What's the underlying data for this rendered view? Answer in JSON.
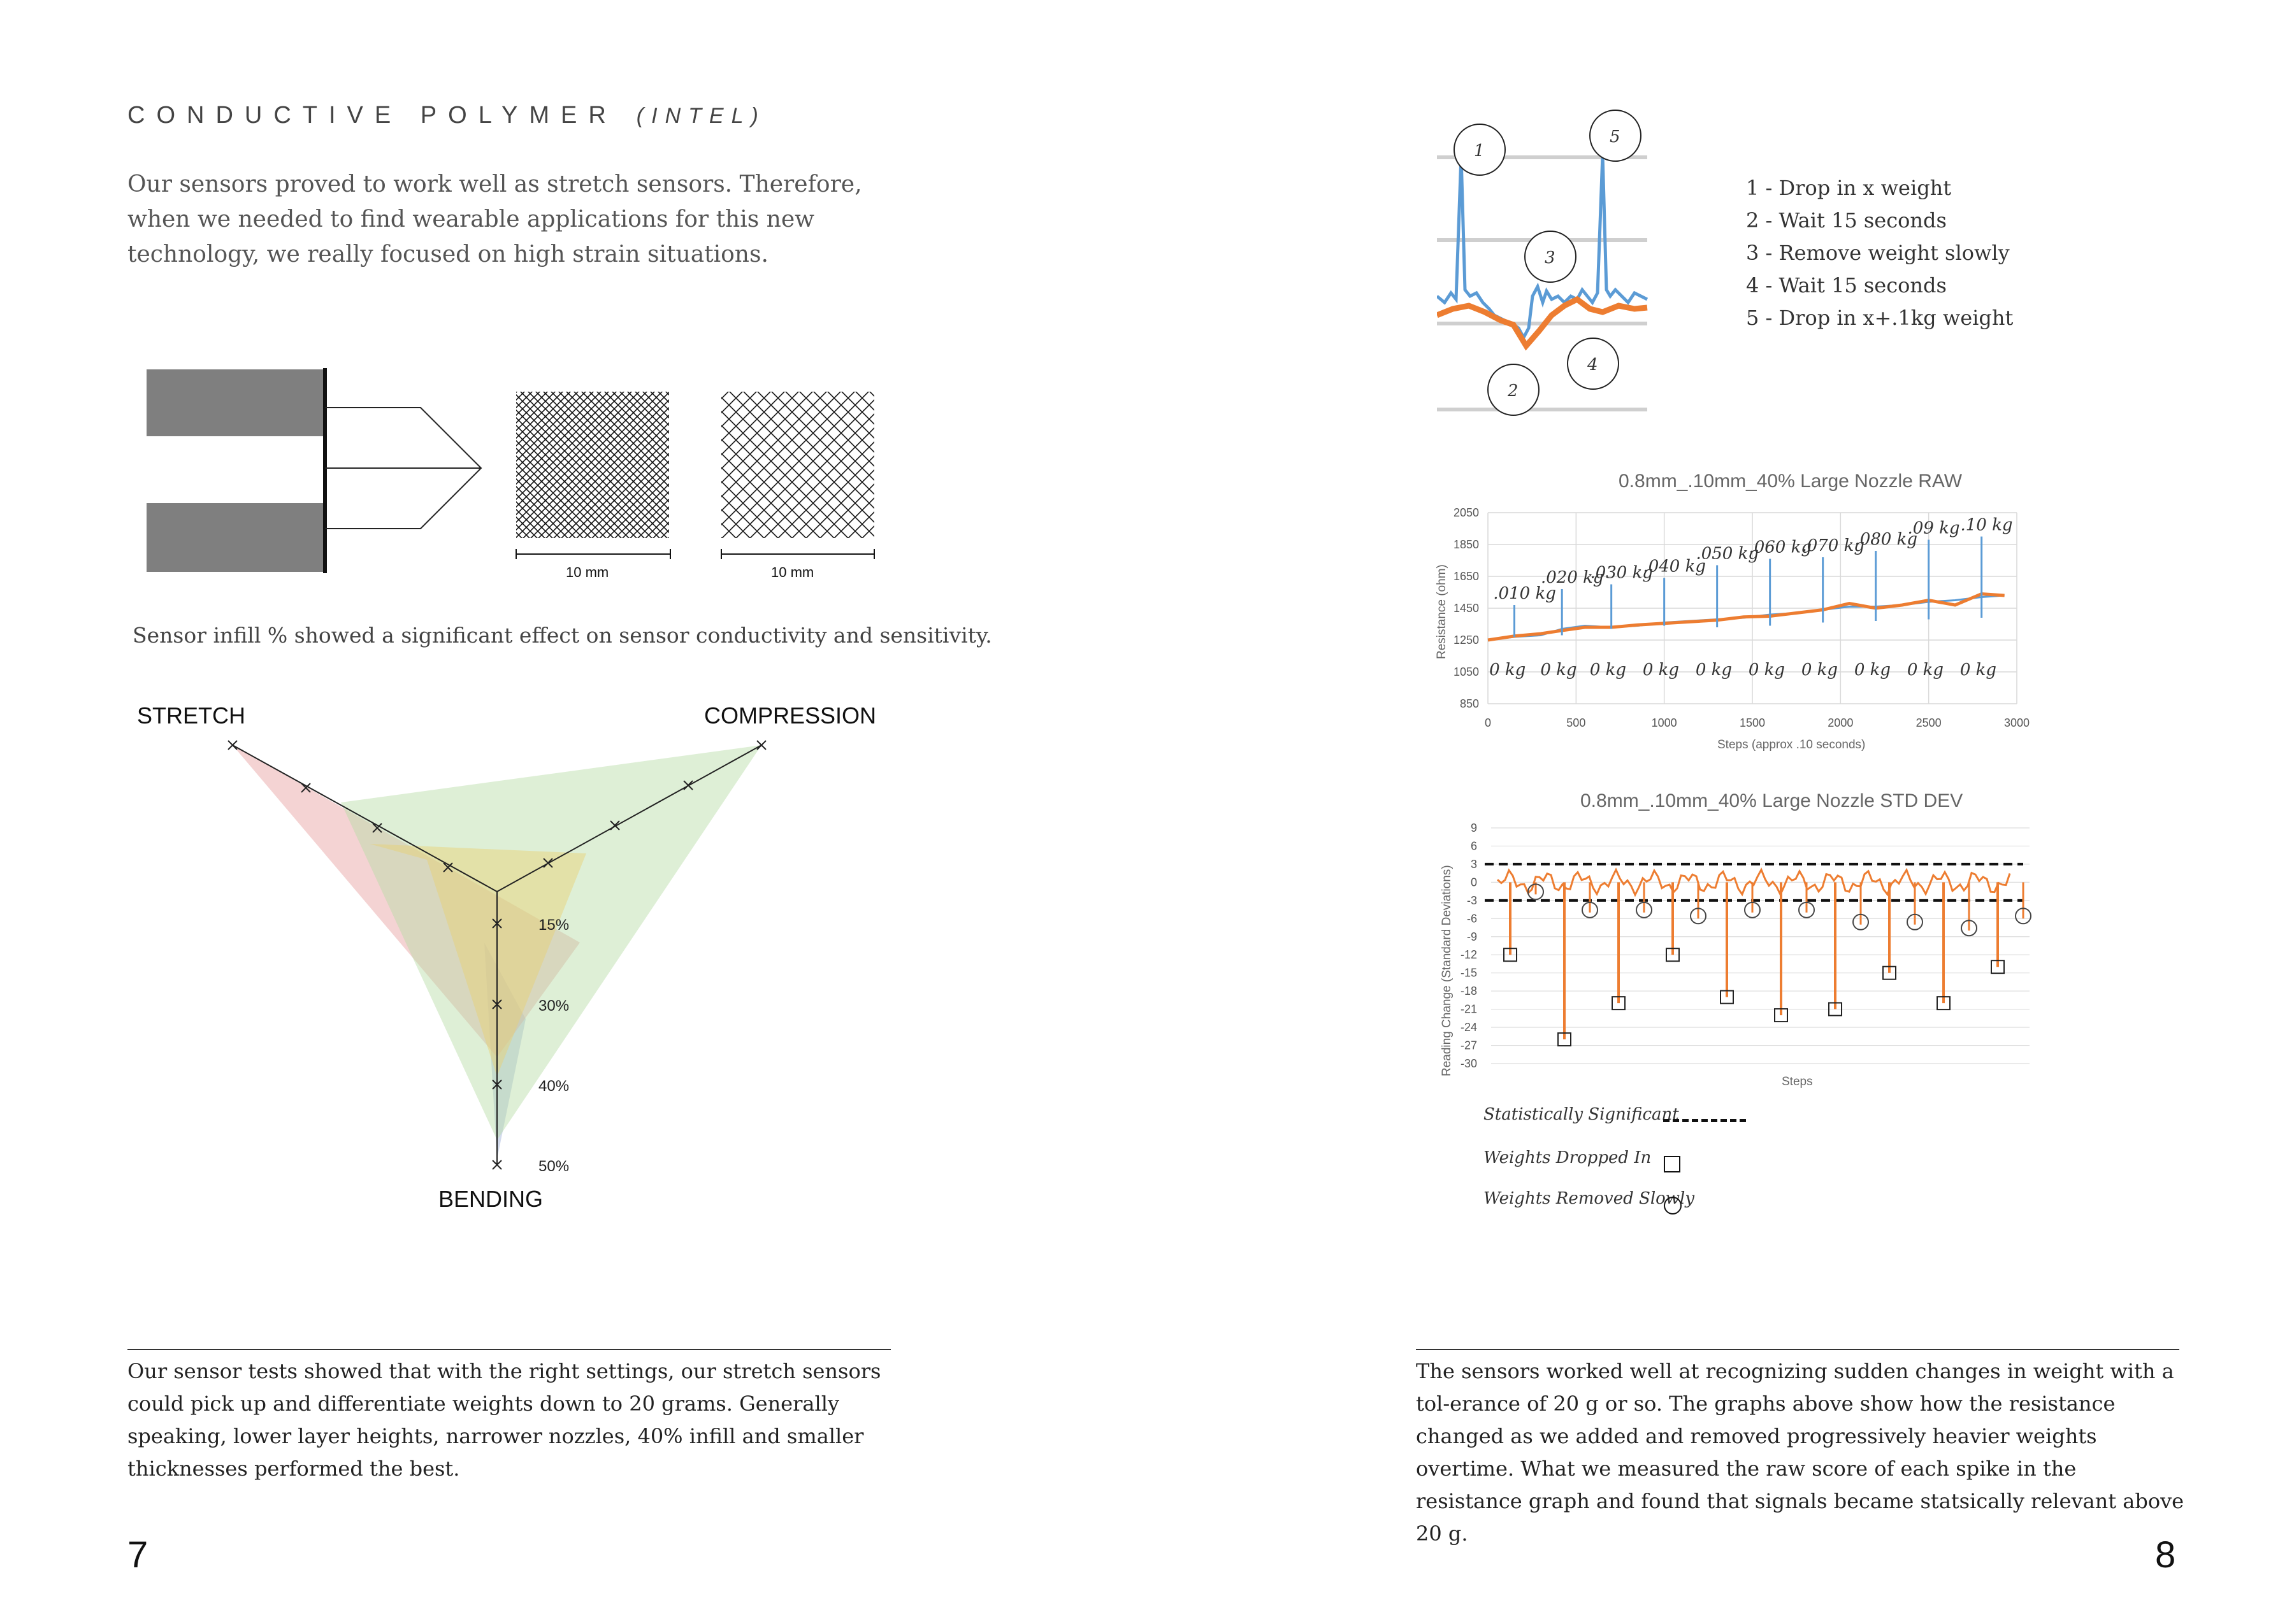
{
  "left_page": {
    "heading": "CONDUCTIVE POLYMER",
    "heading_sub": "(INTEL)",
    "intro": "Our sensors proved to work well as stretch sensors. Therefore, when we needed to find wearable applications for this new technology, we really focused on high strain situations.",
    "scale_labels": [
      "10 mm",
      "10 mm"
    ],
    "infill_caption": "Sensor infill % showed a significant effect on sensor conductivity and sensitivity.",
    "radar": {
      "axes": [
        "STRETCH",
        "COMPRESSION",
        "BENDING"
      ],
      "levels": [
        "15%",
        "30%",
        "40%",
        "50%"
      ],
      "colors": {
        "15%": "#e8d070",
        "30%": "#e9a7a7",
        "40%": "#b6dba4",
        "50%": "#aebddf"
      }
    },
    "conclusion": "Our sensor tests showed that with the right settings, our stretch sensors could pick up and differentiate weights down to 20 grams. Generally speaking, lower layer heights, narrower nozzles, 40% infill and smaller thicknesses performed the best.",
    "page_number": "7"
  },
  "right_page": {
    "annotated_legend": [
      "1 - Drop in x weight",
      "2 - Wait 15 seconds",
      "3 - Remove weight slowly",
      "4 - Wait 15 seconds",
      "5 - Drop in x+.1kg weight"
    ],
    "callouts": [
      "1",
      "2",
      "3",
      "4",
      "5"
    ],
    "raw_weight_labels": [
      ".010 kg",
      ".020 kg",
      ".030 kg",
      ".040 kg",
      ".050 kg",
      ".060 kg",
      ".070 kg",
      ".080 kg",
      ".09 kg",
      ".10 kg"
    ],
    "zero_labels": [
      "0 kg",
      "0 kg",
      "0 kg",
      "0 kg",
      "0 kg",
      "0 kg",
      "0 kg",
      "0 kg",
      "0 kg",
      "0 kg"
    ],
    "std_key": {
      "significant": "Statistically Significant",
      "dropped": "Weights Dropped In",
      "removed": "Weights Removed Slowly"
    },
    "conclusion": "The sensors worked well at recognizing sudden changes in weight with a tol-erance of 20 g or so. The graphs above show how the resistance changed as we added and removed progressively heavier weights overtime. What we measured the raw score of each spike in the resistance graph and found that signals became statsically relevant above 20 g.",
    "page_number": "8"
  },
  "colors": {
    "raw": "#5b9bd5",
    "smooth": "#ed7d31"
  },
  "chart_data": [
    {
      "type": "line",
      "title": "0.8mm_.10mm_40% Large Nozzle RAW",
      "xlabel": "Steps (approx .10 seconds)",
      "ylabel": "Resistance (ohm)",
      "xlim": [
        0,
        3000
      ],
      "ylim": [
        850,
        2050
      ],
      "x_ticks": [
        0,
        500,
        1000,
        1500,
        2000,
        2500,
        3000
      ],
      "y_ticks": [
        850,
        1050,
        1250,
        1450,
        1650,
        1850,
        2050
      ],
      "grid": true,
      "series": [
        {
          "x": [
            0,
            150,
            300,
            420,
            550,
            700,
            850,
            1000,
            1150,
            1300,
            1450,
            1600,
            1750,
            1900,
            2050,
            2200,
            2350,
            2500,
            2650,
            2800,
            2930
          ],
          "values": [
            1250,
            1270,
            1280,
            1320,
            1340,
            1330,
            1340,
            1360,
            1370,
            1380,
            1390,
            1410,
            1420,
            1440,
            1460,
            1460,
            1470,
            1490,
            1500,
            1520,
            1530
          ]
        },
        {
          "x": [
            0,
            150,
            300,
            420,
            550,
            700,
            850,
            1000,
            1150,
            1300,
            1450,
            1600,
            1750,
            1900,
            2050,
            2200,
            2350,
            2500,
            2650,
            2800,
            2930
          ],
          "values": [
            1250,
            1275,
            1290,
            1310,
            1330,
            1330,
            1345,
            1355,
            1365,
            1375,
            1395,
            1400,
            1420,
            1440,
            1480,
            1450,
            1470,
            1500,
            1470,
            1540,
            1530
          ]
        }
      ]
    },
    {
      "type": "line",
      "title": "0.8mm_.10mm_40% Large Nozzle STD DEV",
      "xlabel": "Steps",
      "ylabel": "Reading Change (Standard Deviations)",
      "ylim": [
        -30,
        9
      ],
      "y_ticks": [
        9,
        6,
        3,
        0,
        -3,
        -6,
        -9,
        -12,
        -15,
        -18,
        -21,
        -24,
        -27,
        -30
      ],
      "grid": true,
      "thresholds": [
        3,
        -3
      ],
      "series": [
        {
          "values": [
            -12,
            -26,
            -20,
            -12,
            -19,
            -22,
            -21,
            -15,
            -20,
            -14
          ]
        }
      ],
      "weights_removed": [
        -2,
        -5,
        -5,
        -6,
        -5,
        -5,
        -7,
        -7,
        -8,
        -6
      ]
    }
  ]
}
